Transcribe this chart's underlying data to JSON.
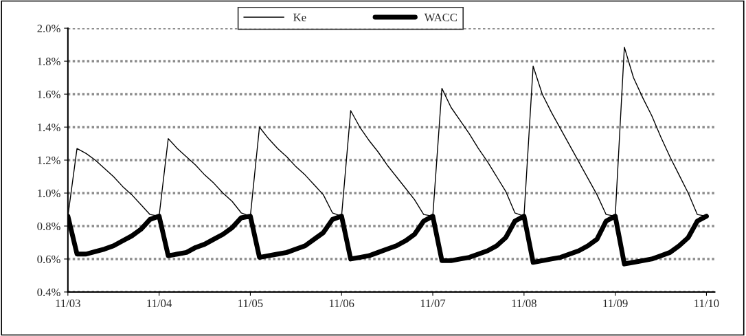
{
  "chart_data": {
    "type": "line",
    "grid": "y",
    "legend": "top",
    "ylim": [
      0.4,
      2.0
    ],
    "categories": [
      "11/03",
      null,
      null,
      null,
      null,
      null,
      null,
      null,
      null,
      null,
      "11/04",
      null,
      null,
      null,
      null,
      null,
      null,
      null,
      null,
      null,
      "11/05",
      null,
      null,
      null,
      null,
      null,
      null,
      null,
      null,
      null,
      "11/06",
      null,
      null,
      null,
      null,
      null,
      null,
      null,
      null,
      null,
      "11/07",
      null,
      null,
      null,
      null,
      null,
      null,
      null,
      null,
      null,
      "11/08",
      null,
      null,
      null,
      null,
      null,
      null,
      null,
      null,
      null,
      "11/09",
      null,
      null,
      null,
      null,
      null,
      null,
      null,
      null,
      null,
      "11/10"
    ],
    "yticks": [
      {
        "value": 0.4,
        "label": "0.4%"
      },
      {
        "value": 0.6,
        "label": "0.6%"
      },
      {
        "value": 0.8,
        "label": "0.8%"
      },
      {
        "value": 1.0,
        "label": "1.0%"
      },
      {
        "value": 1.2,
        "label": "1.2%"
      },
      {
        "value": 1.4,
        "label": "1.4%"
      },
      {
        "value": 1.6,
        "label": "1.6%"
      },
      {
        "value": 1.8,
        "label": "1.8%"
      },
      {
        "value": 2.0,
        "label": "2.0%"
      }
    ],
    "series": [
      {
        "name": "Ke",
        "color": "#000000",
        "values": [
          0.86,
          1.27,
          1.24,
          1.2,
          1.15,
          1.1,
          1.04,
          0.99,
          0.93,
          0.87,
          0.86,
          1.33,
          1.27,
          1.22,
          1.17,
          1.11,
          1.06,
          1.0,
          0.95,
          0.88,
          0.86,
          1.4,
          1.33,
          1.27,
          1.22,
          1.16,
          1.11,
          1.05,
          0.99,
          0.88,
          0.86,
          1.5,
          1.4,
          1.32,
          1.25,
          1.17,
          1.1,
          1.03,
          0.96,
          0.87,
          0.86,
          1.635,
          1.52,
          1.44,
          1.36,
          1.27,
          1.19,
          1.1,
          1.01,
          0.88,
          0.86,
          1.77,
          1.6,
          1.49,
          1.39,
          1.29,
          1.19,
          1.09,
          0.99,
          0.87,
          0.86,
          1.885,
          1.7,
          1.58,
          1.47,
          1.34,
          1.22,
          1.11,
          1.0,
          0.87,
          0.86
        ]
      },
      {
        "name": "WACC",
        "color": "#000000",
        "values": [
          0.86,
          0.63,
          0.63,
          0.645,
          0.66,
          0.68,
          0.71,
          0.74,
          0.78,
          0.84,
          0.86,
          0.62,
          0.63,
          0.64,
          0.67,
          0.69,
          0.72,
          0.75,
          0.79,
          0.85,
          0.86,
          0.61,
          0.62,
          0.63,
          0.64,
          0.66,
          0.68,
          0.72,
          0.76,
          0.84,
          0.86,
          0.6,
          0.61,
          0.62,
          0.64,
          0.66,
          0.68,
          0.71,
          0.75,
          0.83,
          0.86,
          0.59,
          0.59,
          0.6,
          0.61,
          0.63,
          0.65,
          0.68,
          0.73,
          0.83,
          0.86,
          0.58,
          0.59,
          0.6,
          0.61,
          0.63,
          0.65,
          0.68,
          0.72,
          0.83,
          0.86,
          0.57,
          0.58,
          0.59,
          0.6,
          0.62,
          0.64,
          0.68,
          0.73,
          0.83,
          0.86
        ]
      }
    ]
  }
}
